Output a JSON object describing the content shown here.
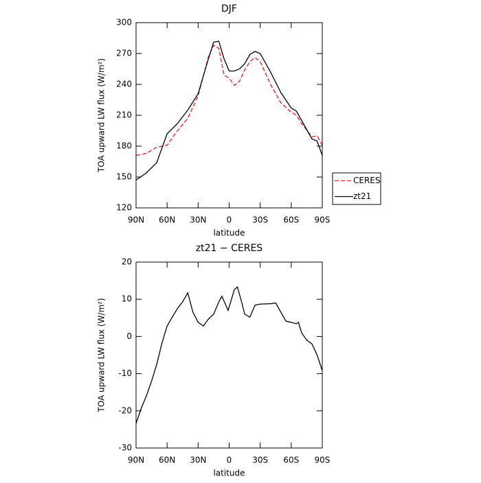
{
  "chart_data": [
    {
      "type": "line",
      "title": "DJF",
      "xlabel": "latitude",
      "ylabel": "TOA upward LW flux (W/m²)",
      "xlim": [
        90,
        -90
      ],
      "xticks": [
        {
          "value": 90,
          "label": "90N"
        },
        {
          "value": 60,
          "label": "60N"
        },
        {
          "value": 30,
          "label": "30N"
        },
        0,
        {
          "value": -30,
          "label": "30S"
        },
        {
          "value": -60,
          "label": "60S"
        },
        {
          "value": -90,
          "label": "90S"
        }
      ],
      "ylim": [
        120,
        300
      ],
      "yticks": [
        120,
        150,
        180,
        210,
        240,
        270,
        300
      ],
      "legend": "right",
      "x": [
        90,
        80,
        70,
        60,
        50,
        40,
        30,
        20,
        15,
        10,
        5,
        0,
        -5,
        -10,
        -15,
        -20,
        -25,
        -30,
        -40,
        -50,
        -60,
        -65,
        -70,
        -80,
        -85,
        -90
      ],
      "series": [
        {
          "name": "CERES",
          "color": "#e8191e",
          "linestyle": "dashed",
          "values": [
            171,
            173,
            179,
            181,
            195,
            207,
            229,
            267,
            278,
            275,
            249,
            246,
            239,
            243,
            254,
            262,
            266,
            262,
            240,
            222,
            213,
            210,
            202,
            189,
            190,
            181
          ]
        },
        {
          "name": "zt21",
          "color": "#000000",
          "linestyle": "solid",
          "values": [
            147,
            154,
            164,
            192,
            202,
            215,
            231,
            265,
            281,
            282,
            265,
            253,
            253,
            255,
            260,
            269,
            272,
            270,
            252,
            232,
            217,
            214,
            205,
            187,
            185,
            171
          ]
        }
      ]
    },
    {
      "type": "line",
      "title": "zt21 − CERES",
      "xlabel": "latitude",
      "ylabel": "TOA upward LW flux (W/m²)",
      "xlim": [
        90,
        -90
      ],
      "xticks": [
        {
          "value": 90,
          "label": "90N"
        },
        {
          "value": 60,
          "label": "60N"
        },
        {
          "value": 30,
          "label": "30N"
        },
        0,
        {
          "value": -30,
          "label": "30S"
        },
        {
          "value": -60,
          "label": "60S"
        },
        {
          "value": -90,
          "label": "90S"
        }
      ],
      "ylim": [
        -30,
        20
      ],
      "yticks": [
        -30,
        -20,
        -10,
        0,
        10,
        20
      ],
      "x": [
        90,
        85,
        80,
        75,
        70,
        65,
        60,
        55,
        50,
        45,
        40,
        35,
        30,
        25,
        20,
        15,
        10,
        7,
        1,
        -5,
        -8,
        -12,
        -15,
        -20,
        -25,
        -30,
        -40,
        -45,
        -50,
        -55,
        -60,
        -65,
        -67,
        -70,
        -75,
        -80,
        -85,
        -90
      ],
      "series": [
        {
          "name": "zt21 − CERES",
          "color": "#000000",
          "linestyle": "solid",
          "values": [
            -23.4,
            -19.3,
            -16,
            -12,
            -7.5,
            -1.8,
            2.8,
            5.2,
            7.5,
            9.3,
            11.7,
            6.5,
            3.8,
            2.8,
            4.7,
            6,
            9.3,
            10.8,
            7,
            12.6,
            13.3,
            9.3,
            6,
            5.2,
            8.4,
            8.7,
            8.8,
            9,
            6.5,
            4.1,
            3.8,
            3.4,
            3.8,
            1,
            -1,
            -2,
            -5,
            -9.2
          ]
        }
      ]
    }
  ]
}
